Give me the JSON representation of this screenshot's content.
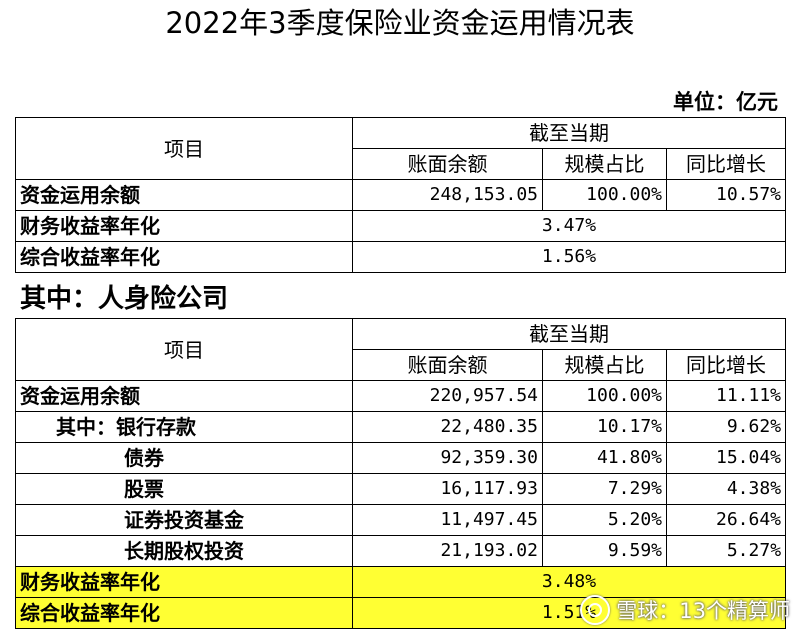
{
  "title": "2022年3季度保险业资金运用情况表",
  "unit": "单位：亿元",
  "header": {
    "item": "项目",
    "period": "截至当期",
    "col1": "账面余额",
    "col2": "规模占比",
    "col3": "同比增长"
  },
  "table1": {
    "total_label": "资金运用余额",
    "total_balance": "248,153.05",
    "total_share": "100.00%",
    "total_growth": "10.57%",
    "fin_label": "财务收益率年化",
    "fin_value": "3.47%",
    "comp_label": "综合收益率年化",
    "comp_value": "1.56%"
  },
  "subhead": "其中：人身险公司",
  "table2": {
    "total_label": "资金运用余额",
    "total_balance": "220,957.54",
    "total_share": "100.00%",
    "total_growth": "11.11%",
    "rows": [
      {
        "label": "其中：银行存款",
        "balance": "22,480.35",
        "share": "10.17%",
        "growth": "9.62%"
      },
      {
        "label": "债券",
        "balance": "92,359.30",
        "share": "41.80%",
        "growth": "15.04%"
      },
      {
        "label": "股票",
        "balance": "16,117.93",
        "share": "7.29%",
        "growth": "4.38%"
      },
      {
        "label": "证券投资基金",
        "balance": "11,497.45",
        "share": "5.20%",
        "growth": "26.64%"
      },
      {
        "label": "长期股权投资",
        "balance": "21,193.02",
        "share": "9.59%",
        "growth": "5.27%"
      }
    ],
    "fin_label": "财务收益率年化",
    "fin_value": "3.48%",
    "comp_label": "综合收益率年化",
    "comp_value": "1.51%"
  },
  "watermark": "雪球：13个精算师",
  "colors": {
    "highlight": "#ffff33"
  }
}
